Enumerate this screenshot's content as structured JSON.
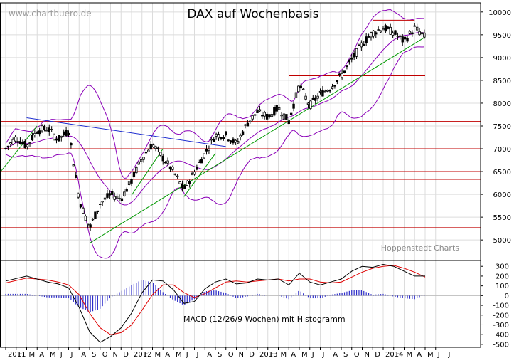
{
  "watermark": "www.chartbuero.de",
  "source_label": "Hoppenstedt Charts",
  "chart_data": [
    {
      "type": "candlestick",
      "title": "DAX auf Wochenbasis",
      "x_ticks": [
        {
          "label": "2011",
          "year": 2011,
          "month": 1
        },
        {
          "label": "F",
          "year": 2011,
          "month": 2
        },
        {
          "label": "M",
          "year": 2011,
          "month": 3
        },
        {
          "label": "A",
          "year": 2011,
          "month": 4
        },
        {
          "label": "M",
          "year": 2011,
          "month": 5
        },
        {
          "label": "J",
          "year": 2011,
          "month": 6
        },
        {
          "label": "J",
          "year": 2011,
          "month": 7
        },
        {
          "label": "A",
          "year": 2011,
          "month": 8
        },
        {
          "label": "S",
          "year": 2011,
          "month": 9
        },
        {
          "label": "O",
          "year": 2011,
          "month": 10
        },
        {
          "label": "N",
          "year": 2011,
          "month": 11
        },
        {
          "label": "D",
          "year": 2011,
          "month": 12
        },
        {
          "label": "2012",
          "year": 2012,
          "month": 1
        },
        {
          "label": "F",
          "year": 2012,
          "month": 2
        },
        {
          "label": "M",
          "year": 2012,
          "month": 3
        },
        {
          "label": "A",
          "year": 2012,
          "month": 4
        },
        {
          "label": "M",
          "year": 2012,
          "month": 5
        },
        {
          "label": "J",
          "year": 2012,
          "month": 6
        },
        {
          "label": "J",
          "year": 2012,
          "month": 7
        },
        {
          "label": "A",
          "year": 2012,
          "month": 8
        },
        {
          "label": "S",
          "year": 2012,
          "month": 9
        },
        {
          "label": "O",
          "year": 2012,
          "month": 10
        },
        {
          "label": "N",
          "year": 2012,
          "month": 11
        },
        {
          "label": "D",
          "year": 2012,
          "month": 12
        },
        {
          "label": "2013",
          "year": 2013,
          "month": 1
        },
        {
          "label": "F",
          "year": 2013,
          "month": 2
        },
        {
          "label": "M",
          "year": 2013,
          "month": 3
        },
        {
          "label": "A",
          "year": 2013,
          "month": 4
        },
        {
          "label": "M",
          "year": 2013,
          "month": 5
        },
        {
          "label": "J",
          "year": 2013,
          "month": 6
        },
        {
          "label": "J",
          "year": 2013,
          "month": 7
        },
        {
          "label": "A",
          "year": 2013,
          "month": 8
        },
        {
          "label": "S",
          "year": 2013,
          "month": 9
        },
        {
          "label": "O",
          "year": 2013,
          "month": 10
        },
        {
          "label": "N",
          "year": 2013,
          "month": 11
        },
        {
          "label": "D",
          "year": 2013,
          "month": 12
        },
        {
          "label": "2014",
          "year": 2014,
          "month": 1
        },
        {
          "label": "F",
          "year": 2014,
          "month": 2
        },
        {
          "label": "M",
          "year": 2014,
          "month": 3
        },
        {
          "label": "A",
          "year": 2014,
          "month": 4
        },
        {
          "label": "M",
          "year": 2014,
          "month": 5
        },
        {
          "label": "J",
          "year": 2014,
          "month": 6
        },
        {
          "label": "J",
          "year": 2014,
          "month": 7
        }
      ],
      "y_ticks": [
        5000,
        5500,
        6000,
        6500,
        7000,
        7500,
        8000,
        8500,
        9000,
        9500,
        10000
      ],
      "ylim": [
        4550,
        10200
      ],
      "grid": true,
      "axis_side": "right",
      "colors": {
        "candle": "#000000",
        "bollinger": "#8b00b8",
        "trend": "#009900",
        "downtrend": "#1f2fd0",
        "horizontal": "#c00000"
      },
      "horizontal_lines": [
        {
          "value": 7600,
          "style": "solid"
        },
        {
          "value": 7000,
          "style": "solid"
        },
        {
          "value": 6500,
          "style": "solid"
        },
        {
          "value": 6330,
          "style": "solid"
        },
        {
          "value": 5270,
          "style": "solid"
        },
        {
          "value": 5150,
          "style": "dashed"
        },
        {
          "value": 8600,
          "style": "solid",
          "from": "2013-04",
          "to": "2014-05"
        },
        {
          "value": 9820,
          "style": "solid",
          "from": "2013-12",
          "to": "2014-04"
        }
      ],
      "trend_lines": [
        {
          "color": "downtrend",
          "from": {
            "date": "2011-03",
            "value": 7680
          },
          "to": {
            "date": "2012-10",
            "value": 7050
          }
        },
        {
          "color": "trend",
          "from": {
            "date": "2010-12",
            "value": 6350
          },
          "to": {
            "date": "2011-04",
            "value": 7500
          }
        },
        {
          "color": "trend",
          "from": {
            "date": "2011-09",
            "value": 4930
          },
          "to": {
            "date": "2014-05",
            "value": 9450
          }
        },
        {
          "color": "trend",
          "from": {
            "date": "2012-01",
            "value": 5980
          },
          "to": {
            "date": "2012-04",
            "value": 7000
          }
        },
        {
          "color": "trend",
          "from": {
            "date": "2012-06",
            "value": 5950
          },
          "to": {
            "date": "2012-09",
            "value": 6900
          }
        }
      ],
      "weekly_close_path": [
        [
          "2011-01",
          7000
        ],
        [
          "2011-02",
          7250
        ],
        [
          "2011-03",
          7050
        ],
        [
          "2011-04",
          7400
        ],
        [
          "2011-05",
          7450
        ],
        [
          "2011-06",
          7200
        ],
        [
          "2011-07",
          7400
        ],
        [
          "2011-08",
          5900
        ],
        [
          "2011-09",
          5250
        ],
        [
          "2011-10",
          5800
        ],
        [
          "2011-11",
          6000
        ],
        [
          "2011-12",
          5900
        ],
        [
          "2012-01",
          6300
        ],
        [
          "2012-02",
          6800
        ],
        [
          "2012-03",
          7100
        ],
        [
          "2012-04",
          6800
        ],
        [
          "2012-05",
          6500
        ],
        [
          "2012-06",
          6100
        ],
        [
          "2012-07",
          6500
        ],
        [
          "2012-08",
          6900
        ],
        [
          "2012-09",
          7300
        ],
        [
          "2012-10",
          7300
        ],
        [
          "2012-11",
          7100
        ],
        [
          "2012-12",
          7550
        ],
        [
          "2013-01",
          7800
        ],
        [
          "2013-02",
          7700
        ],
        [
          "2013-03",
          7900
        ],
        [
          "2013-04",
          7600
        ],
        [
          "2013-05",
          8400
        ],
        [
          "2013-06",
          7950
        ],
        [
          "2013-07",
          8200
        ],
        [
          "2013-08",
          8350
        ],
        [
          "2013-09",
          8600
        ],
        [
          "2013-10",
          8950
        ],
        [
          "2013-11",
          9300
        ],
        [
          "2013-12",
          9550
        ],
        [
          "2014-01",
          9650
        ],
        [
          "2014-02",
          9550
        ],
        [
          "2014-03",
          9350
        ],
        [
          "2014-04",
          9650
        ],
        [
          "2014-05",
          9450
        ]
      ]
    },
    {
      "type": "line",
      "label": "MACD (12/26/9 Wochen) mit Histogramm",
      "y_ticks": [
        300,
        200,
        100,
        0,
        -100,
        -200,
        -300,
        -400,
        -500
      ],
      "ylim": [
        -530,
        360
      ],
      "colors": {
        "macd": "#000000",
        "signal": "#e00000",
        "histogram": "#2a2ac8"
      },
      "series": [
        {
          "key": "macd",
          "values": [
            [
              "2011-01",
              150
            ],
            [
              "2011-03",
              200
            ],
            [
              "2011-05",
              140
            ],
            [
              "2011-06",
              120
            ],
            [
              "2011-07",
              80
            ],
            [
              "2011-08",
              -120
            ],
            [
              "2011-09",
              -370
            ],
            [
              "2011-10",
              -480
            ],
            [
              "2011-11",
              -420
            ],
            [
              "2011-12",
              -330
            ],
            [
              "2012-01",
              -180
            ],
            [
              "2012-02",
              30
            ],
            [
              "2012-03",
              160
            ],
            [
              "2012-04",
              150
            ],
            [
              "2012-05",
              60
            ],
            [
              "2012-06",
              -80
            ],
            [
              "2012-07",
              -60
            ],
            [
              "2012-08",
              70
            ],
            [
              "2012-09",
              140
            ],
            [
              "2012-10",
              170
            ],
            [
              "2012-11",
              120
            ],
            [
              "2012-12",
              130
            ],
            [
              "2013-01",
              170
            ],
            [
              "2013-02",
              160
            ],
            [
              "2013-03",
              170
            ],
            [
              "2013-04",
              110
            ],
            [
              "2013-05",
              230
            ],
            [
              "2013-06",
              140
            ],
            [
              "2013-07",
              110
            ],
            [
              "2013-08",
              140
            ],
            [
              "2013-09",
              170
            ],
            [
              "2013-10",
              250
            ],
            [
              "2013-11",
              300
            ],
            [
              "2013-12",
              290
            ],
            [
              "2014-01",
              320
            ],
            [
              "2014-02",
              300
            ],
            [
              "2014-03",
              250
            ],
            [
              "2014-04",
              200
            ],
            [
              "2014-05",
              200
            ]
          ]
        },
        {
          "key": "signal",
          "values": [
            [
              "2011-01",
              130
            ],
            [
              "2011-03",
              180
            ],
            [
              "2011-05",
              160
            ],
            [
              "2011-06",
              140
            ],
            [
              "2011-07",
              110
            ],
            [
              "2011-08",
              10
            ],
            [
              "2011-09",
              -180
            ],
            [
              "2011-10",
              -330
            ],
            [
              "2011-11",
              -400
            ],
            [
              "2011-12",
              -380
            ],
            [
              "2012-01",
              -300
            ],
            [
              "2012-02",
              -150
            ],
            [
              "2012-03",
              10
            ],
            [
              "2012-04",
              110
            ],
            [
              "2012-05",
              110
            ],
            [
              "2012-06",
              30
            ],
            [
              "2012-07",
              -20
            ],
            [
              "2012-08",
              20
            ],
            [
              "2012-09",
              80
            ],
            [
              "2012-10",
              140
            ],
            [
              "2012-11",
              150
            ],
            [
              "2012-12",
              140
            ],
            [
              "2013-01",
              150
            ],
            [
              "2013-02",
              160
            ],
            [
              "2013-03",
              170
            ],
            [
              "2013-04",
              150
            ],
            [
              "2013-05",
              170
            ],
            [
              "2013-06",
              170
            ],
            [
              "2013-07",
              140
            ],
            [
              "2013-08",
              130
            ],
            [
              "2013-09",
              140
            ],
            [
              "2013-10",
              190
            ],
            [
              "2013-11",
              240
            ],
            [
              "2013-12",
              280
            ],
            [
              "2014-01",
              300
            ],
            [
              "2014-02",
              310
            ],
            [
              "2014-03",
              280
            ],
            [
              "2014-04",
              240
            ],
            [
              "2014-05",
              190
            ]
          ]
        }
      ]
    }
  ]
}
